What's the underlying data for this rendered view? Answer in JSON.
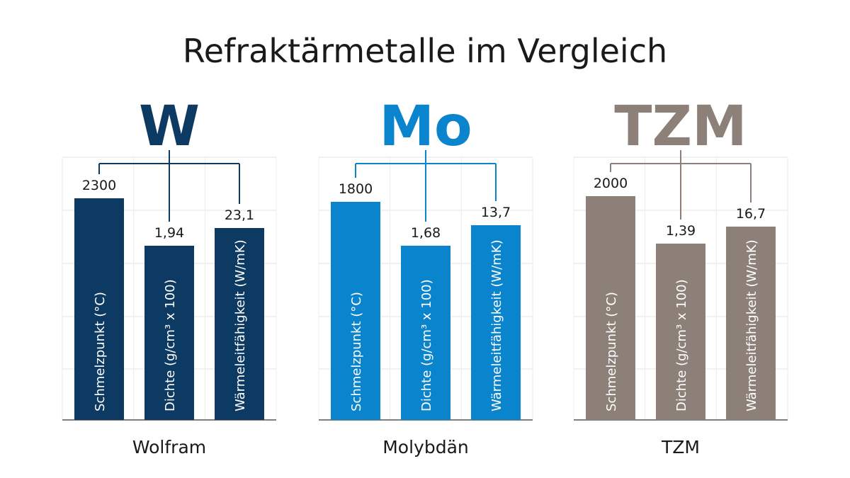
{
  "title": "Refraktärmetalle im Vergleich",
  "chart_data": {
    "type": "bar",
    "title": "Refraktärmetalle im Vergleich",
    "categories": [
      "Schmelzpunkt (°C)",
      "Dichte (g/cm³ x 100)",
      "Wärmeleitfähigkeit (W/mK)"
    ],
    "grid": true,
    "panels": [
      {
        "symbol": "W",
        "name": "Wolfram",
        "color": "#0d3a62",
        "values": [
          2300,
          1.94,
          23.1
        ],
        "value_labels": [
          "2300",
          "1,94",
          "23,1"
        ]
      },
      {
        "symbol": "Mo",
        "name": "Molybdän",
        "color": "#0a84cc",
        "values": [
          1800,
          1.68,
          13.7
        ],
        "value_labels": [
          "1800",
          "1,68",
          "13,7"
        ]
      },
      {
        "symbol": "TZM",
        "name": "TZM",
        "color": "#8d8079",
        "values": [
          2000,
          1.39,
          16.7
        ],
        "value_labels": [
          "2000",
          "1,39",
          "16,7"
        ]
      }
    ]
  }
}
